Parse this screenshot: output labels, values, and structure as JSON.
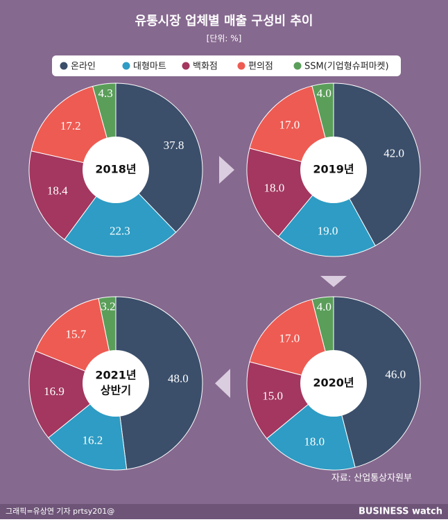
{
  "title": "유통시장 업체별 매출 구성비 추이",
  "subtitle": "[단위: %]",
  "categories": [
    "온라인",
    "대형마트",
    "백화점",
    "편의점",
    "SSM(기업형슈퍼마켓)"
  ],
  "colors": [
    "#3b4f6b",
    "#2e9cc4",
    "#a3375f",
    "#ee5b52",
    "#5a9e5a"
  ],
  "source": "자료: 산업통상자원부",
  "credit": "그래픽=유상연 기자 prtsy201@",
  "brand": "BUSINESS watch",
  "chart_data": [
    {
      "type": "pie",
      "center_label": [
        "2018년"
      ],
      "values": [
        37.8,
        22.3,
        18.4,
        17.2,
        4.3
      ],
      "value_labels": [
        "37.8",
        "22.3",
        "18.4",
        "17.2",
        "4.3"
      ]
    },
    {
      "type": "pie",
      "center_label": [
        "2019년"
      ],
      "values": [
        42,
        19,
        18,
        17,
        4
      ],
      "value_labels": [
        "42.0",
        "19.0",
        "18.0",
        "17.0",
        "4.0"
      ]
    },
    {
      "type": "pie",
      "center_label": [
        "2021년",
        "상반기"
      ],
      "values": [
        48,
        16.2,
        16.9,
        15.7,
        3.2
      ],
      "value_labels": [
        "48.0",
        "16.2",
        "16.9",
        "15.7",
        "3.2"
      ]
    },
    {
      "type": "pie",
      "center_label": [
        "2020년"
      ],
      "values": [
        46,
        18,
        15,
        17,
        4
      ],
      "value_labels": [
        "46.0",
        "18.0",
        "15.0",
        "17.0",
        "4.0"
      ]
    }
  ]
}
